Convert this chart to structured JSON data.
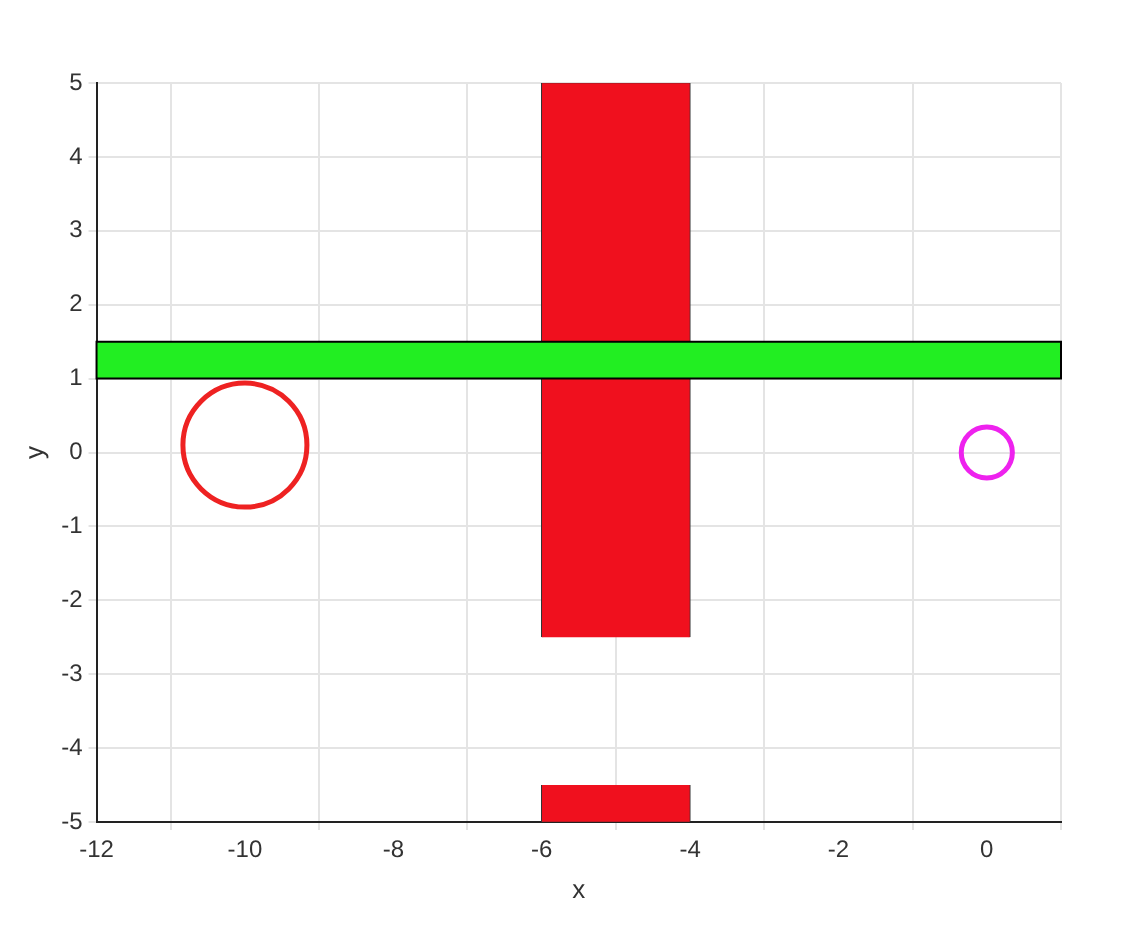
{
  "chart_data": {
    "type": "bar",
    "xlabel": "x",
    "ylabel": "y",
    "xlim": [
      -12,
      1
    ],
    "xticks": [
      -12,
      -10,
      -8,
      -6,
      -4,
      -2,
      0
    ],
    "ylim": [
      -5,
      5
    ],
    "yticks": [
      -5,
      -4,
      -3,
      -2,
      -1,
      0,
      1,
      2,
      3,
      4,
      5
    ],
    "grid": true,
    "series": [
      {
        "color": "#f0101e",
        "x": [
          -5,
          -5
        ],
        "base": [
          -2.5,
          -5
        ],
        "values": [
          7.5,
          0.5
        ]
      },
      {
        "type": "bubble",
        "color": "#ee2222",
        "x": [
          -10
        ],
        "values": [
          0.1
        ],
        "sizes": [
          1
        ]
      },
      {
        "type": "bubble",
        "color": "#ee22ee",
        "x": [
          0
        ],
        "values": [
          0
        ],
        "sizes": [
          0.17
        ]
      }
    ],
    "bands": [
      {
        "axis": "y",
        "from": 1,
        "to": 1.5,
        "color": "#22ee22"
      }
    ]
  }
}
